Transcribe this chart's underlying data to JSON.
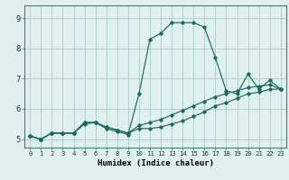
{
  "xlabel": "Humidex (Indice chaleur)",
  "bg_color": "#dff0ef",
  "grid_color": "#aecfca",
  "line_color": "#1a6b5e",
  "xlim": [
    -0.5,
    23.5
  ],
  "ylim": [
    4.72,
    9.42
  ],
  "xticks": [
    0,
    1,
    2,
    3,
    4,
    5,
    6,
    7,
    8,
    9,
    10,
    11,
    12,
    13,
    14,
    15,
    16,
    17,
    18,
    19,
    20,
    21,
    22,
    23
  ],
  "yticks": [
    5,
    6,
    7,
    8,
    9
  ],
  "lines": [
    {
      "x": [
        0,
        1,
        2,
        3,
        4,
        5,
        6,
        7,
        8,
        9,
        10,
        11,
        12,
        13,
        14,
        15,
        16,
        17,
        18,
        19,
        20,
        21,
        22,
        23
      ],
      "y": [
        5.1,
        5.0,
        5.2,
        5.2,
        5.2,
        5.5,
        5.55,
        5.35,
        5.25,
        5.15,
        6.5,
        8.3,
        8.5,
        8.85,
        8.85,
        8.85,
        8.7,
        7.7,
        6.6,
        6.5,
        7.15,
        6.65,
        6.95,
        6.65
      ]
    },
    {
      "x": [
        0,
        1,
        2,
        3,
        4,
        5,
        6,
        7,
        8,
        9,
        10,
        11,
        12,
        13,
        14,
        15,
        16,
        17,
        18,
        19,
        20,
        21,
        22,
        23
      ],
      "y": [
        5.1,
        5.0,
        5.2,
        5.2,
        5.2,
        5.55,
        5.55,
        5.4,
        5.3,
        5.2,
        5.35,
        5.35,
        5.4,
        5.5,
        5.6,
        5.75,
        5.9,
        6.1,
        6.2,
        6.35,
        6.5,
        6.55,
        6.65,
        6.65
      ]
    },
    {
      "x": [
        0,
        1,
        2,
        3,
        4,
        5,
        6,
        7,
        8,
        9,
        10,
        11,
        12,
        13,
        14,
        15,
        16,
        17,
        18,
        19,
        20,
        21,
        22,
        23
      ],
      "y": [
        5.1,
        5.0,
        5.2,
        5.2,
        5.2,
        5.55,
        5.55,
        5.4,
        5.3,
        5.2,
        5.45,
        5.55,
        5.65,
        5.8,
        5.95,
        6.1,
        6.25,
        6.4,
        6.5,
        6.6,
        6.7,
        6.75,
        6.8,
        6.65
      ]
    }
  ],
  "xlabel_fontsize": 6.5,
  "tick_fontsize_x": 5.2,
  "tick_fontsize_y": 6.5
}
